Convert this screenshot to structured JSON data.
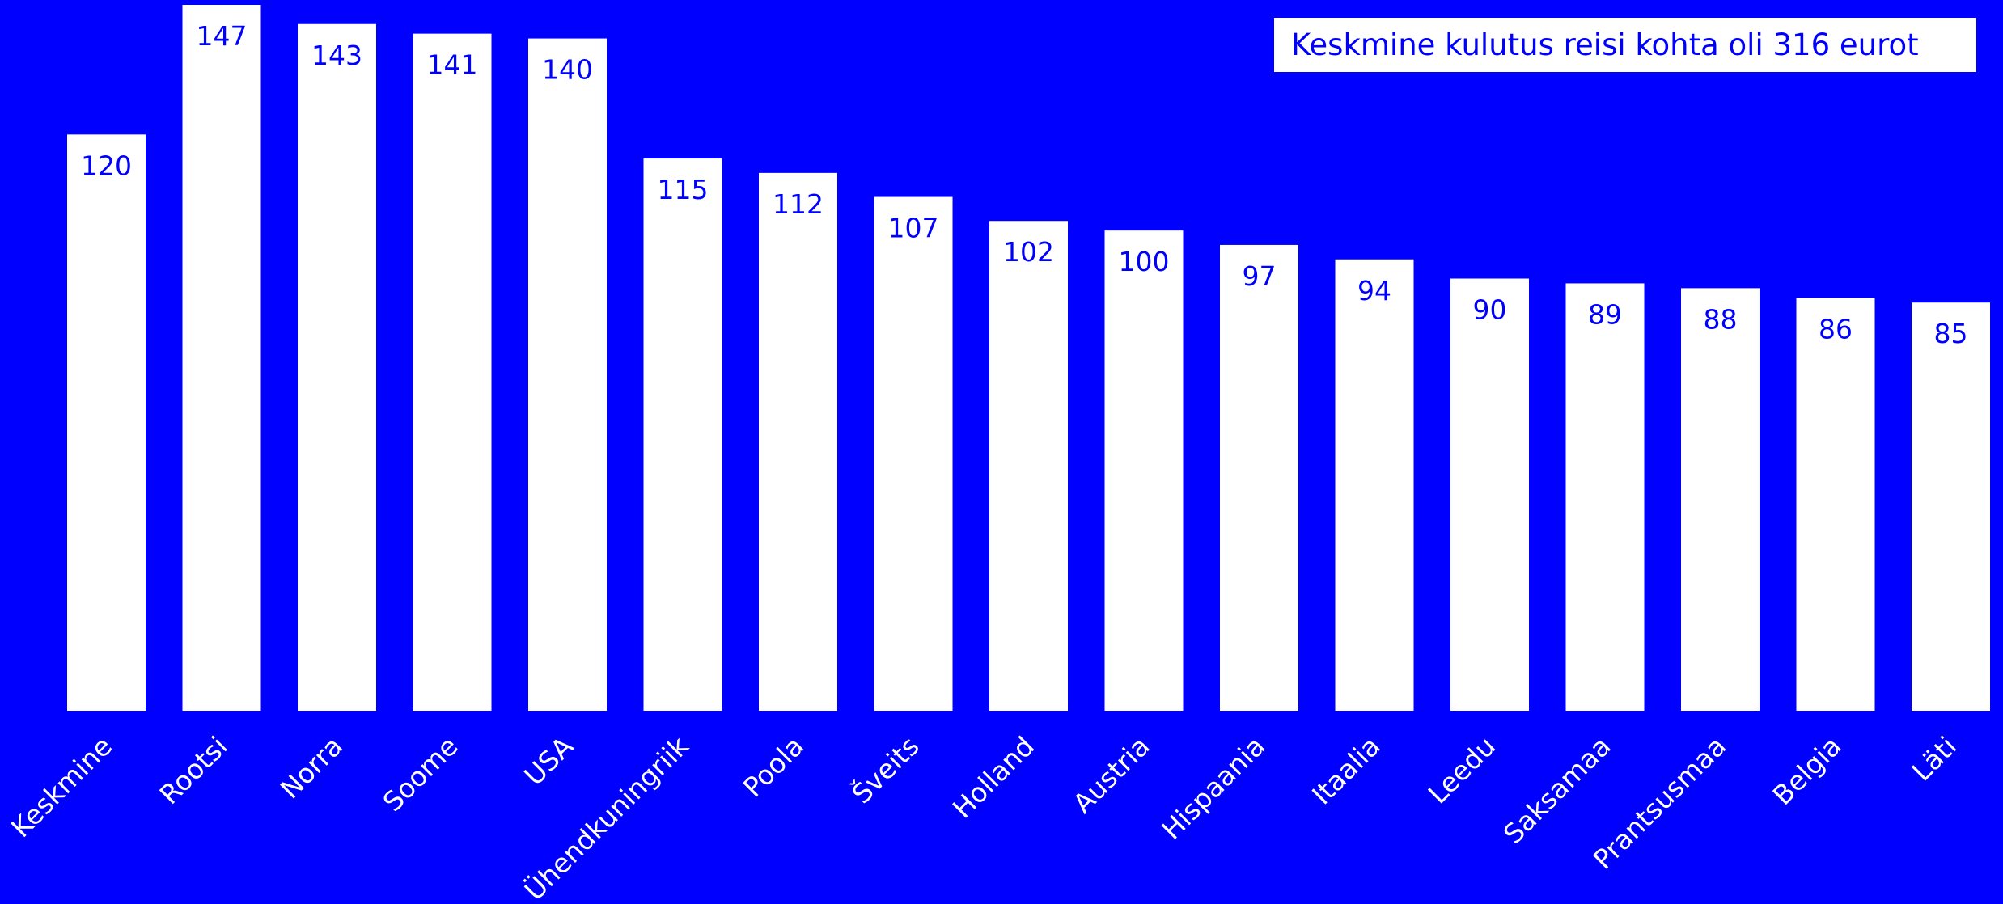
{
  "colors": {
    "background": "#0000FF",
    "bar": "#FFFFFF",
    "data_label": "#0000FF",
    "axis_label": "#FFFFFF"
  },
  "chart_data": {
    "type": "bar",
    "categories": [
      "Keskmine",
      "Rootsi",
      "Norra",
      "Soome",
      "USA",
      "Ühendkuningriik",
      "Poola",
      "Šveits",
      "Holland",
      "Austria",
      "Hispaania",
      "Itaalia",
      "Leedu",
      "Saksamaa",
      "Prantsusmaa",
      "Belgia",
      "Läti"
    ],
    "values": [
      120,
      147,
      143,
      141,
      140,
      115,
      112,
      107,
      102,
      100,
      97,
      94,
      90,
      89,
      88,
      86,
      85
    ],
    "title": "",
    "xlabel": "",
    "ylabel": "",
    "ylim": [
      0,
      147
    ],
    "grid": false,
    "legend": "none",
    "annotation": "Keskmine kulutus reisi kohta oli 316 eurot"
  }
}
